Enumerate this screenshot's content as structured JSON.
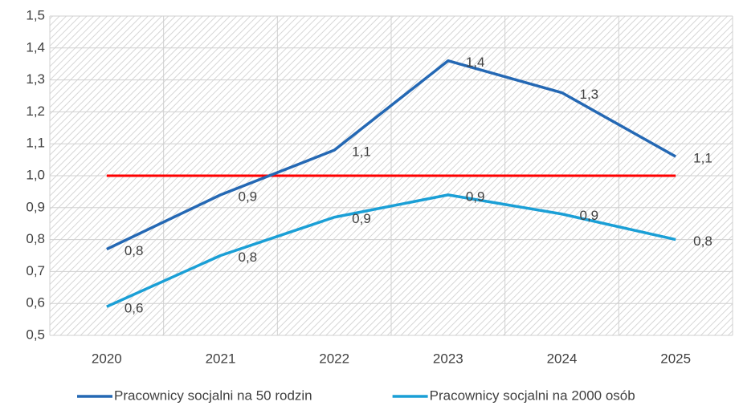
{
  "chart_data": {
    "type": "line",
    "categories": [
      "2020",
      "2021",
      "2022",
      "2023",
      "2024",
      "2025"
    ],
    "series": [
      {
        "name": "Pracownicy socjalni na 50 rodzin",
        "color": "#2468b4",
        "values": [
          0.77,
          0.94,
          1.08,
          1.36,
          1.26,
          1.06
        ],
        "value_labels": [
          "0,8",
          "0,9",
          "1,1",
          "1,4",
          "1,3",
          "1,1"
        ]
      },
      {
        "name": "Pracownicy socjalni na 2000 osób",
        "color": "#1a9fd6",
        "values": [
          0.59,
          0.75,
          0.87,
          0.94,
          0.88,
          0.8
        ],
        "value_labels": [
          "0,6",
          "0,8",
          "0,9",
          "0,9",
          "0,9",
          "0,8"
        ]
      }
    ],
    "threshold": {
      "values": [
        1.0,
        1.0,
        1.0,
        1.0,
        1.0,
        1.0
      ],
      "color": "#ff0000"
    },
    "ylim": [
      0.5,
      1.5
    ],
    "yticks": [
      {
        "value": 0.5,
        "label": "0,5"
      },
      {
        "value": 0.6,
        "label": "0,6"
      },
      {
        "value": 0.7,
        "label": "0,7"
      },
      {
        "value": 0.8,
        "label": "0,8"
      },
      {
        "value": 0.9,
        "label": "0,9"
      },
      {
        "value": 1.0,
        "label": "1,0"
      },
      {
        "value": 1.1,
        "label": "1,1"
      },
      {
        "value": 1.2,
        "label": "1,2"
      },
      {
        "value": 1.3,
        "label": "1,3"
      },
      {
        "value": 1.4,
        "label": "1,4"
      },
      {
        "value": 1.5,
        "label": "1,5"
      }
    ],
    "grid": true,
    "legend": "bottom"
  }
}
